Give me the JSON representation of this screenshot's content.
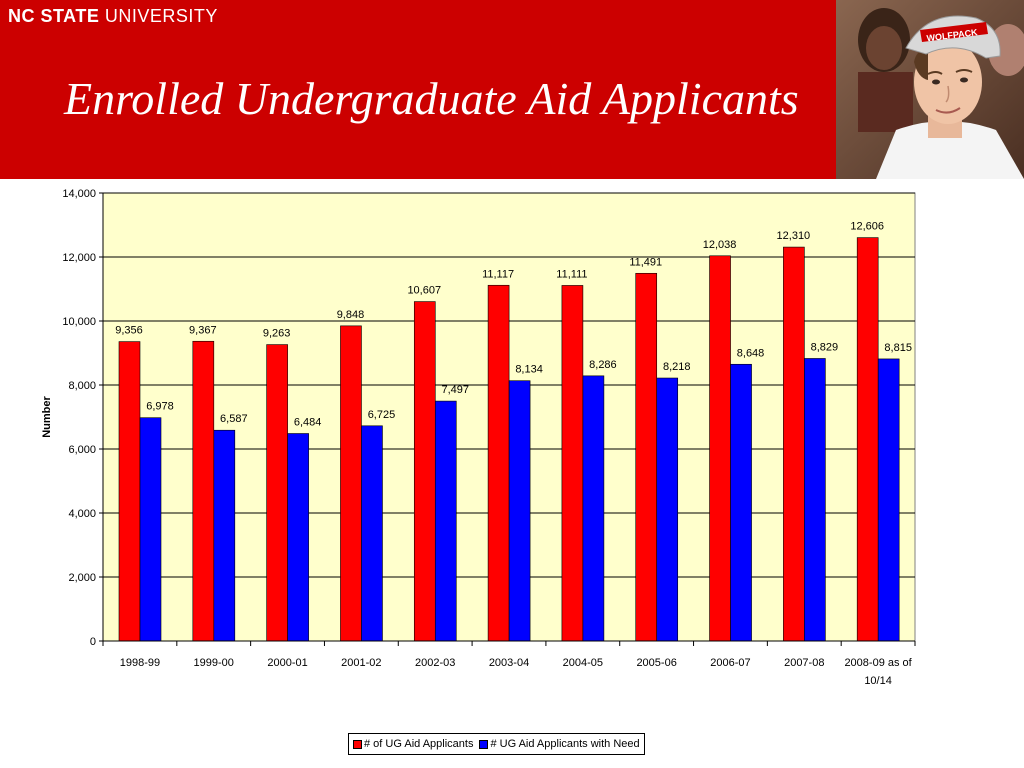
{
  "header": {
    "brand_bold": "NC STATE",
    "brand_light": "UNIVERSITY",
    "title": "Enrolled Undergraduate Aid Applicants"
  },
  "colors": {
    "banner": "#cc0000",
    "series1": "#ff0000",
    "series2": "#0000ff",
    "plot_bg": "#ffffcc"
  },
  "photo": {
    "cap_text": "WOLFPACK"
  },
  "chart_data": {
    "type": "bar",
    "title": "",
    "xlabel": "",
    "ylabel": "Number",
    "ylim": [
      0,
      14000
    ],
    "yticks": [
      "0",
      "2,000",
      "4,000",
      "6,000",
      "8,000",
      "10,000",
      "12,000",
      "14,000"
    ],
    "grid": true,
    "legend_position": "bottom",
    "categories": [
      [
        "1998-99"
      ],
      [
        "1999-00"
      ],
      [
        "2000-01"
      ],
      [
        "2001-02"
      ],
      [
        "2002-03"
      ],
      [
        "2003-04"
      ],
      [
        "2004-05"
      ],
      [
        "2005-06"
      ],
      [
        "2006-07"
      ],
      [
        "2007-08"
      ],
      [
        "2008-09 as of",
        "10/14"
      ]
    ],
    "series": [
      {
        "name": "# of UG Aid Applicants",
        "color": "#ff0000",
        "values": [
          9356,
          9367,
          9263,
          9848,
          10607,
          11117,
          11111,
          11491,
          12038,
          12310,
          12606
        ],
        "labels": [
          "9,356",
          "9,367",
          "9,263",
          "9,848",
          "10,607",
          "11,117",
          "11,111",
          "11,491",
          "12,038",
          "12,310",
          "12,606"
        ]
      },
      {
        "name": "# UG Aid Applicants with Need",
        "color": "#0000ff",
        "values": [
          6978,
          6587,
          6484,
          6725,
          7497,
          8134,
          8286,
          8218,
          8648,
          8829,
          8815
        ],
        "labels": [
          "6,978",
          "6,587",
          "6,484",
          "6,725",
          "7,497",
          "8,134",
          "8,286",
          "8,218",
          "8,648",
          "8,829",
          "8,815"
        ]
      }
    ]
  }
}
